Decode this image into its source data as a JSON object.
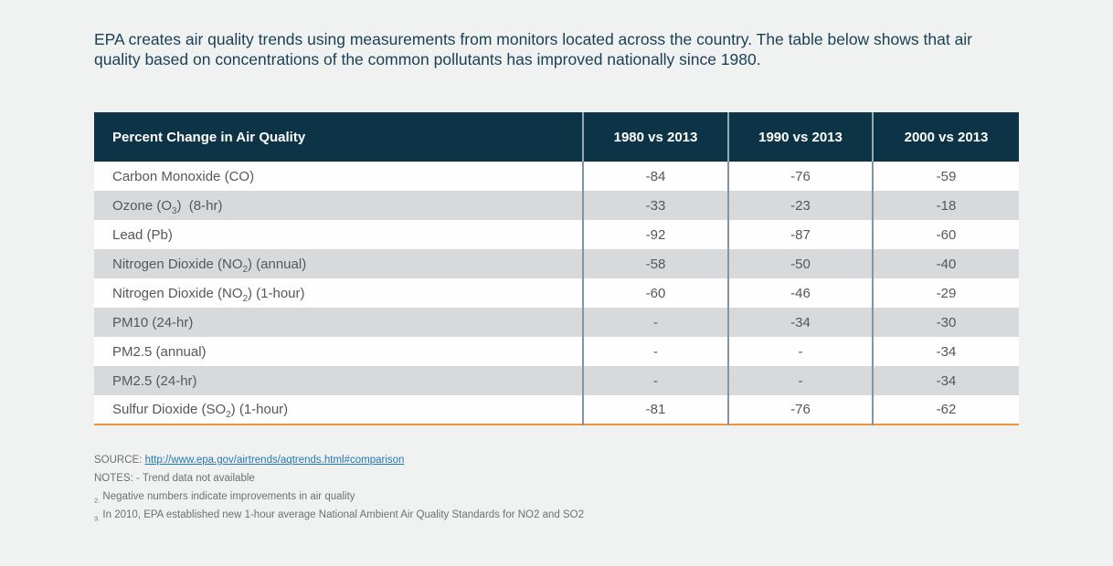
{
  "intro": {
    "text": "EPA creates air quality trends using measurements from monitors located across the country. The table below shows that air quality based on concentrations of the common pollutants has improved nationally since 1980."
  },
  "table": {
    "columns": [
      "Percent Change in Air Quality",
      "1980 vs 2013",
      "1990 vs 2013",
      "2000 vs 2013"
    ],
    "rows": [
      {
        "label": "Carbon Monoxide (CO)",
        "values": [
          "-84",
          "-76",
          "-59"
        ]
      },
      {
        "label": "Ozone (O_{3})  (8-hr)",
        "values": [
          "-33",
          "-23",
          "-18"
        ]
      },
      {
        "label": "Lead (Pb)",
        "values": [
          "-92",
          "-87",
          "-60"
        ]
      },
      {
        "label": "Nitrogen Dioxide (NO_{2}) (annual)",
        "values": [
          "-58",
          "-50",
          "-40"
        ]
      },
      {
        "label": "Nitrogen Dioxide (NO_{2}) (1-hour)",
        "values": [
          "-60",
          "-46",
          "-29"
        ]
      },
      {
        "label": "PM10 (24-hr)",
        "values": [
          "-",
          "-34",
          "-30"
        ]
      },
      {
        "label": "PM2.5 (annual)",
        "values": [
          "-",
          "-",
          "-34"
        ]
      },
      {
        "label": "PM2.5 (24-hr)",
        "values": [
          "-",
          "-",
          "-34"
        ]
      },
      {
        "label": "Sulfur Dioxide (SO_{2}) (1-hour)",
        "values": [
          "-81",
          "-76",
          "-62"
        ]
      }
    ]
  },
  "footer": {
    "source_label": "SOURCE:",
    "source_url": "http://www.epa.gov/airtrends/aqtrends.html#comparison",
    "notes": [
      "NOTES: - Trend data not available",
      "_{2.} Negative numbers indicate improvements in air quality",
      "_{3.} In 2010, EPA established new 1-hour average National Ambient Air Quality Standards for NO2 and SO2"
    ]
  },
  "colors": {
    "header_bg": "#0d3446",
    "row_alt_bg": "#d8d9da",
    "accent_orange": "#ef9340",
    "divider": "#7d97a4",
    "link_blue": "#2277b3",
    "intro_text": "#1b4155",
    "body_text": "#565759",
    "note_text": "#6e7072",
    "page_bg": "#f0f1f1"
  }
}
